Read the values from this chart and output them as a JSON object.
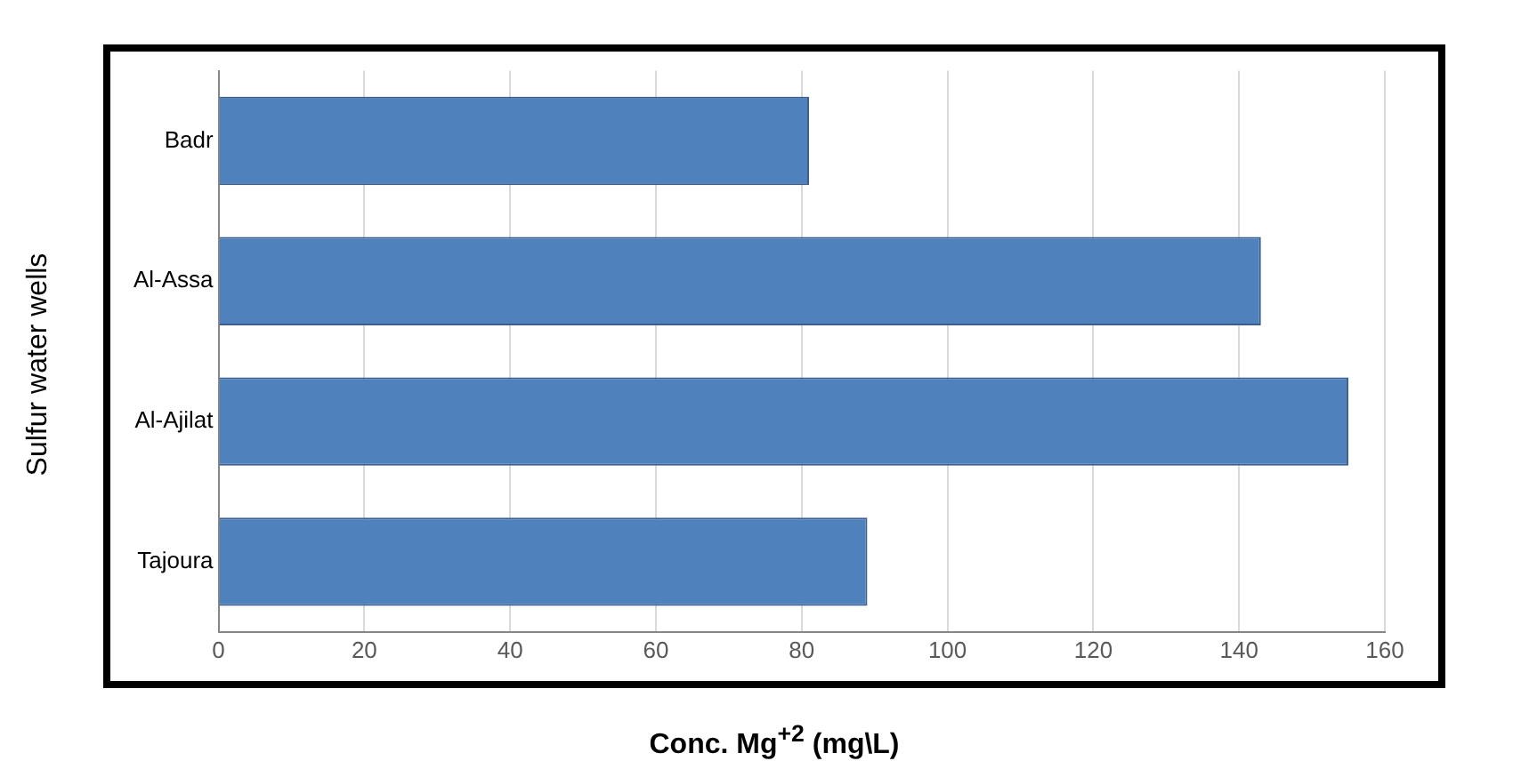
{
  "chart_data": {
    "type": "bar",
    "orientation": "horizontal",
    "xlabel": "Conc. Mg$^{+2}$ (mg\\L)",
    "ylabel": "Sulfur water wells",
    "categories": [
      "Badr",
      "Al-Assa",
      "Al-Ajilat",
      "Tajoura"
    ],
    "values": [
      81,
      143,
      155,
      89
    ],
    "color": "#4f81bd",
    "xlim": [
      0,
      160
    ],
    "xticks": [
      0,
      20,
      40,
      60,
      80,
      100,
      120,
      140,
      160
    ],
    "grid": "x",
    "legend": false
  }
}
